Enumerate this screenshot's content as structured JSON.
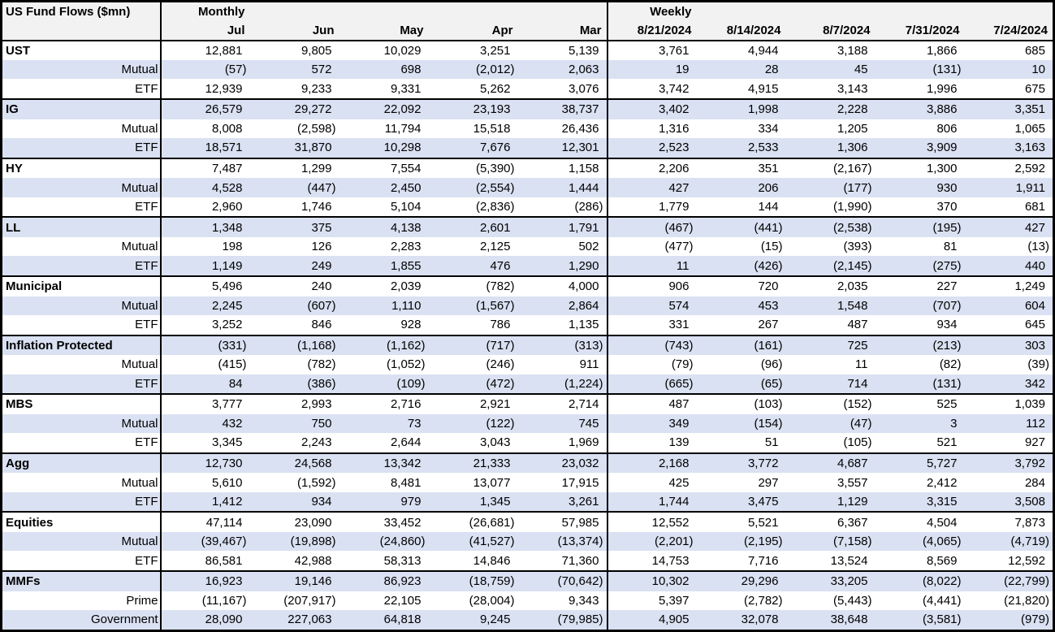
{
  "table": {
    "title": "US Fund Flows ($mn)",
    "colors": {
      "row_shade": "#d9e1f2",
      "header_bg": "#f2f2f2",
      "border": "#000000"
    },
    "sections": [
      {
        "label": "Monthly",
        "columns": [
          "Jul",
          "Jun",
          "May",
          "Apr",
          "Mar"
        ]
      },
      {
        "label": "Weekly",
        "columns": [
          "8/21/2024",
          "8/14/2024",
          "8/7/2024",
          "7/31/2024",
          "7/24/2024"
        ]
      }
    ],
    "groups": [
      {
        "rows": [
          {
            "label": "UST",
            "monthly": [
              "12,881",
              "9,805",
              "10,029",
              "3,251",
              "5,139"
            ],
            "weekly": [
              "3,761",
              "4,944",
              "3,188",
              "1,866",
              "685"
            ]
          },
          {
            "label": "Mutual",
            "monthly": [
              "(57)",
              "572",
              "698",
              "(2,012)",
              "2,063"
            ],
            "weekly": [
              "19",
              "28",
              "45",
              "(131)",
              "10"
            ]
          },
          {
            "label": "ETF",
            "monthly": [
              "12,939",
              "9,233",
              "9,331",
              "5,262",
              "3,076"
            ],
            "weekly": [
              "3,742",
              "4,915",
              "3,143",
              "1,996",
              "675"
            ]
          }
        ]
      },
      {
        "rows": [
          {
            "label": "IG",
            "monthly": [
              "26,579",
              "29,272",
              "22,092",
              "23,193",
              "38,737"
            ],
            "weekly": [
              "3,402",
              "1,998",
              "2,228",
              "3,886",
              "3,351"
            ]
          },
          {
            "label": "Mutual",
            "monthly": [
              "8,008",
              "(2,598)",
              "11,794",
              "15,518",
              "26,436"
            ],
            "weekly": [
              "1,316",
              "334",
              "1,205",
              "806",
              "1,065"
            ]
          },
          {
            "label": "ETF",
            "monthly": [
              "18,571",
              "31,870",
              "10,298",
              "7,676",
              "12,301"
            ],
            "weekly": [
              "2,523",
              "2,533",
              "1,306",
              "3,909",
              "3,163"
            ]
          }
        ]
      },
      {
        "rows": [
          {
            "label": "HY",
            "monthly": [
              "7,487",
              "1,299",
              "7,554",
              "(5,390)",
              "1,158"
            ],
            "weekly": [
              "2,206",
              "351",
              "(2,167)",
              "1,300",
              "2,592"
            ]
          },
          {
            "label": "Mutual",
            "monthly": [
              "4,528",
              "(447)",
              "2,450",
              "(2,554)",
              "1,444"
            ],
            "weekly": [
              "427",
              "206",
              "(177)",
              "930",
              "1,911"
            ]
          },
          {
            "label": "ETF",
            "monthly": [
              "2,960",
              "1,746",
              "5,104",
              "(2,836)",
              "(286)"
            ],
            "weekly": [
              "1,779",
              "144",
              "(1,990)",
              "370",
              "681"
            ]
          }
        ]
      },
      {
        "rows": [
          {
            "label": "LL",
            "monthly": [
              "1,348",
              "375",
              "4,138",
              "2,601",
              "1,791"
            ],
            "weekly": [
              "(467)",
              "(441)",
              "(2,538)",
              "(195)",
              "427"
            ]
          },
          {
            "label": "Mutual",
            "monthly": [
              "198",
              "126",
              "2,283",
              "2,125",
              "502"
            ],
            "weekly": [
              "(477)",
              "(15)",
              "(393)",
              "81",
              "(13)"
            ]
          },
          {
            "label": "ETF",
            "monthly": [
              "1,149",
              "249",
              "1,855",
              "476",
              "1,290"
            ],
            "weekly": [
              "11",
              "(426)",
              "(2,145)",
              "(275)",
              "440"
            ]
          }
        ]
      },
      {
        "rows": [
          {
            "label": "Municipal",
            "monthly": [
              "5,496",
              "240",
              "2,039",
              "(782)",
              "4,000"
            ],
            "weekly": [
              "906",
              "720",
              "2,035",
              "227",
              "1,249"
            ]
          },
          {
            "label": "Mutual",
            "monthly": [
              "2,245",
              "(607)",
              "1,110",
              "(1,567)",
              "2,864"
            ],
            "weekly": [
              "574",
              "453",
              "1,548",
              "(707)",
              "604"
            ]
          },
          {
            "label": "ETF",
            "monthly": [
              "3,252",
              "846",
              "928",
              "786",
              "1,135"
            ],
            "weekly": [
              "331",
              "267",
              "487",
              "934",
              "645"
            ]
          }
        ]
      },
      {
        "rows": [
          {
            "label": "Inflation Protected",
            "monthly": [
              "(331)",
              "(1,168)",
              "(1,162)",
              "(717)",
              "(313)"
            ],
            "weekly": [
              "(743)",
              "(161)",
              "725",
              "(213)",
              "303"
            ]
          },
          {
            "label": "Mutual",
            "monthly": [
              "(415)",
              "(782)",
              "(1,052)",
              "(246)",
              "911"
            ],
            "weekly": [
              "(79)",
              "(96)",
              "11",
              "(82)",
              "(39)"
            ]
          },
          {
            "label": "ETF",
            "monthly": [
              "84",
              "(386)",
              "(109)",
              "(472)",
              "(1,224)"
            ],
            "weekly": [
              "(665)",
              "(65)",
              "714",
              "(131)",
              "342"
            ]
          }
        ]
      },
      {
        "rows": [
          {
            "label": "MBS",
            "monthly": [
              "3,777",
              "2,993",
              "2,716",
              "2,921",
              "2,714"
            ],
            "weekly": [
              "487",
              "(103)",
              "(152)",
              "525",
              "1,039"
            ]
          },
          {
            "label": "Mutual",
            "monthly": [
              "432",
              "750",
              "73",
              "(122)",
              "745"
            ],
            "weekly": [
              "349",
              "(154)",
              "(47)",
              "3",
              "112"
            ]
          },
          {
            "label": "ETF",
            "monthly": [
              "3,345",
              "2,243",
              "2,644",
              "3,043",
              "1,969"
            ],
            "weekly": [
              "139",
              "51",
              "(105)",
              "521",
              "927"
            ]
          }
        ]
      },
      {
        "rows": [
          {
            "label": "Agg",
            "monthly": [
              "12,730",
              "24,568",
              "13,342",
              "21,333",
              "23,032"
            ],
            "weekly": [
              "2,168",
              "3,772",
              "4,687",
              "5,727",
              "3,792"
            ]
          },
          {
            "label": "Mutual",
            "monthly": [
              "5,610",
              "(1,592)",
              "8,481",
              "13,077",
              "17,915"
            ],
            "weekly": [
              "425",
              "297",
              "3,557",
              "2,412",
              "284"
            ]
          },
          {
            "label": "ETF",
            "monthly": [
              "1,412",
              "934",
              "979",
              "1,345",
              "3,261"
            ],
            "weekly": [
              "1,744",
              "3,475",
              "1,129",
              "3,315",
              "3,508"
            ]
          }
        ]
      },
      {
        "rows": [
          {
            "label": "Equities",
            "monthly": [
              "47,114",
              "23,090",
              "33,452",
              "(26,681)",
              "57,985"
            ],
            "weekly": [
              "12,552",
              "5,521",
              "6,367",
              "4,504",
              "7,873"
            ]
          },
          {
            "label": "Mutual",
            "monthly": [
              "(39,467)",
              "(19,898)",
              "(24,860)",
              "(41,527)",
              "(13,374)"
            ],
            "weekly": [
              "(2,201)",
              "(2,195)",
              "(7,158)",
              "(4,065)",
              "(4,719)"
            ]
          },
          {
            "label": "ETF",
            "monthly": [
              "86,581",
              "42,988",
              "58,313",
              "14,846",
              "71,360"
            ],
            "weekly": [
              "14,753",
              "7,716",
              "13,524",
              "8,569",
              "12,592"
            ]
          }
        ]
      },
      {
        "rows": [
          {
            "label": "MMFs",
            "monthly": [
              "16,923",
              "19,146",
              "86,923",
              "(18,759)",
              "(70,642)"
            ],
            "weekly": [
              "10,302",
              "29,296",
              "33,205",
              "(8,022)",
              "(22,799)"
            ]
          },
          {
            "label": "Prime",
            "monthly": [
              "(11,167)",
              "(207,917)",
              "22,105",
              "(28,004)",
              "9,343"
            ],
            "weekly": [
              "5,397",
              "(2,782)",
              "(5,443)",
              "(4,441)",
              "(21,820)"
            ]
          },
          {
            "label": "Government",
            "monthly": [
              "28,090",
              "227,063",
              "64,818",
              "9,245",
              "(79,985)"
            ],
            "weekly": [
              "4,905",
              "32,078",
              "38,648",
              "(3,581)",
              "(979)"
            ]
          }
        ]
      }
    ]
  }
}
